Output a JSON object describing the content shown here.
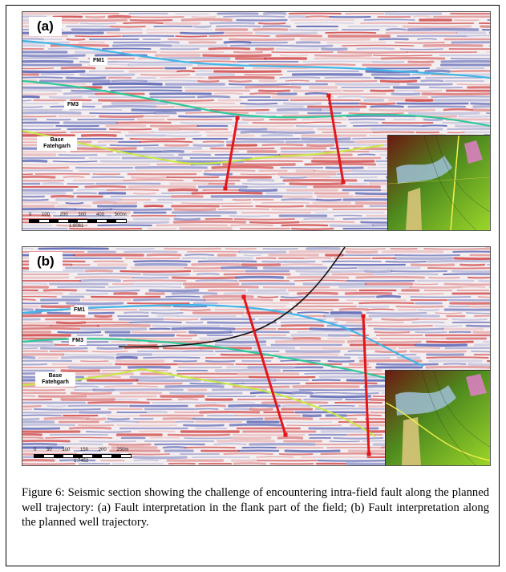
{
  "figure": {
    "caption": "Figure 6: Seismic section showing the challenge of encountering intra-field fault along the planned well trajectory: (a) Fault interpretation in the flank part of the field; (b) Fault interpretation along the planned well trajectory.",
    "panel_a": {
      "label": "(a)",
      "horizons": [
        "FM1",
        "FM3",
        "Base Fatehgarh"
      ],
      "scale_ticks": "0 100 200 300 400 500m",
      "scale_ratio": "1:8061"
    },
    "panel_b": {
      "label": "(b)",
      "horizons": [
        "FM1",
        "FM3",
        "Base Fatehgarh"
      ],
      "scale_ticks": "0 50 100 150 200 250m",
      "scale_ratio": "1:7452"
    }
  },
  "colors": {
    "fm1": "#3fb6e8",
    "fm3": "#2ec89a",
    "base_fatehgarh": "#c8e84a",
    "fault": "#e3161b",
    "well_trajectory": "#111111",
    "seismic_positive": "#2f3fa6",
    "seismic_negative": "#c81818"
  }
}
